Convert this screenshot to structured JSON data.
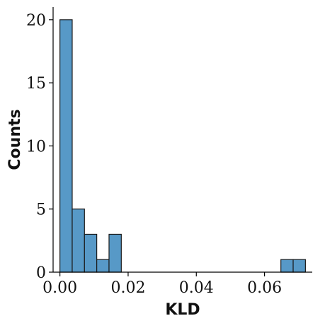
{
  "chart_data": {
    "type": "histogram",
    "title": "",
    "xlabel": "KLD",
    "ylabel": "Counts",
    "xlim": [
      -0.002,
      0.074
    ],
    "ylim": [
      0,
      21
    ],
    "xticks": [
      0.0,
      0.02,
      0.04,
      0.06
    ],
    "xtick_labels": [
      "0.00",
      "0.02",
      "0.04",
      "0.06"
    ],
    "yticks": [
      0,
      5,
      10,
      15,
      20
    ],
    "ytick_labels": [
      "0",
      "5",
      "10",
      "15",
      "20"
    ],
    "grid": false,
    "legend": "none",
    "bar_color": "#5799c7",
    "bar_edge_color": "#1a1a1a",
    "bins": [
      {
        "x0": 0.0,
        "x1": 0.0036,
        "count": 20
      },
      {
        "x0": 0.0036,
        "x1": 0.0072,
        "count": 5
      },
      {
        "x0": 0.0072,
        "x1": 0.0108,
        "count": 3
      },
      {
        "x0": 0.0108,
        "x1": 0.0144,
        "count": 1
      },
      {
        "x0": 0.0144,
        "x1": 0.018,
        "count": 3
      },
      {
        "x0": 0.018,
        "x1": 0.0216,
        "count": 0
      },
      {
        "x0": 0.0216,
        "x1": 0.0252,
        "count": 0
      },
      {
        "x0": 0.0252,
        "x1": 0.0288,
        "count": 0
      },
      {
        "x0": 0.0288,
        "x1": 0.0324,
        "count": 0
      },
      {
        "x0": 0.0324,
        "x1": 0.036,
        "count": 0
      },
      {
        "x0": 0.036,
        "x1": 0.0396,
        "count": 0
      },
      {
        "x0": 0.0396,
        "x1": 0.0432,
        "count": 0
      },
      {
        "x0": 0.0432,
        "x1": 0.0468,
        "count": 0
      },
      {
        "x0": 0.0468,
        "x1": 0.0504,
        "count": 0
      },
      {
        "x0": 0.0504,
        "x1": 0.054,
        "count": 0
      },
      {
        "x0": 0.054,
        "x1": 0.0576,
        "count": 0
      },
      {
        "x0": 0.0576,
        "x1": 0.0612,
        "count": 0
      },
      {
        "x0": 0.0612,
        "x1": 0.0648,
        "count": 0
      },
      {
        "x0": 0.0648,
        "x1": 0.0684,
        "count": 1
      },
      {
        "x0": 0.0684,
        "x1": 0.072,
        "count": 1
      }
    ]
  }
}
